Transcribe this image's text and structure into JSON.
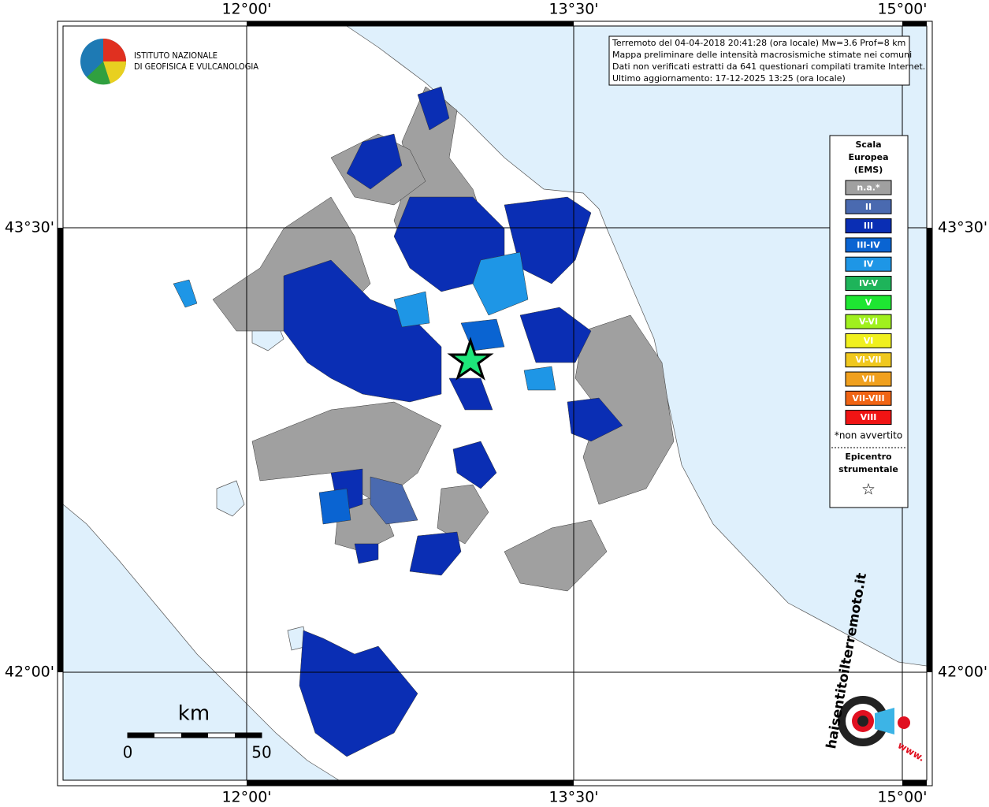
{
  "map": {
    "lon_labels": [
      "12°00'",
      "13°30'",
      "15°00'"
    ],
    "lat_labels": [
      "43°30'",
      "42°00'"
    ],
    "header": [
      "Terremoto del 04-04-2018 20:41:28 (ora locale) Mw=3.6 Prof=8 km",
      "Mappa preliminare delle intensità macrosismiche stimate nei comuni",
      "Dati non verificati estratti da 641 questionari compilati tramite Internet.",
      "Ultimo aggiornamento: 17-12-2025 13:25 (ora locale)"
    ],
    "institute": [
      "ISTITUTO NAZIONALE",
      "DI GEOFISICA E VULCANOLOGIA"
    ],
    "legend": {
      "title": [
        "Scala",
        "Europea",
        "(EMS)"
      ],
      "classes": [
        {
          "label": "n.a.*",
          "color": "#a0a0a0"
        },
        {
          "label": "II",
          "color": "#4a6ab0"
        },
        {
          "label": "III",
          "color": "#0a2eb4"
        },
        {
          "label": "III-IV",
          "color": "#0a64d2"
        },
        {
          "label": "IV",
          "color": "#1e96e6"
        },
        {
          "label": "IV-V",
          "color": "#1eb45a"
        },
        {
          "label": "V",
          "color": "#1ee632"
        },
        {
          "label": "V-VI",
          "color": "#a0f01e"
        },
        {
          "label": "VI",
          "color": "#f0f01e"
        },
        {
          "label": "VI-VII",
          "color": "#f0c81e"
        },
        {
          "label": "VII",
          "color": "#f0a01e"
        },
        {
          "label": "VII-VIII",
          "color": "#f06414"
        },
        {
          "label": "VIII",
          "color": "#f01414"
        }
      ],
      "note": "*non avvertito",
      "epicenter": [
        "Epicentro",
        "strumentale"
      ],
      "star": "☆"
    },
    "scale": {
      "unit": "km",
      "start": "0",
      "end": "50"
    },
    "site": {
      "name": "haisentitoilterremoto.it",
      "prefix": "www."
    }
  }
}
